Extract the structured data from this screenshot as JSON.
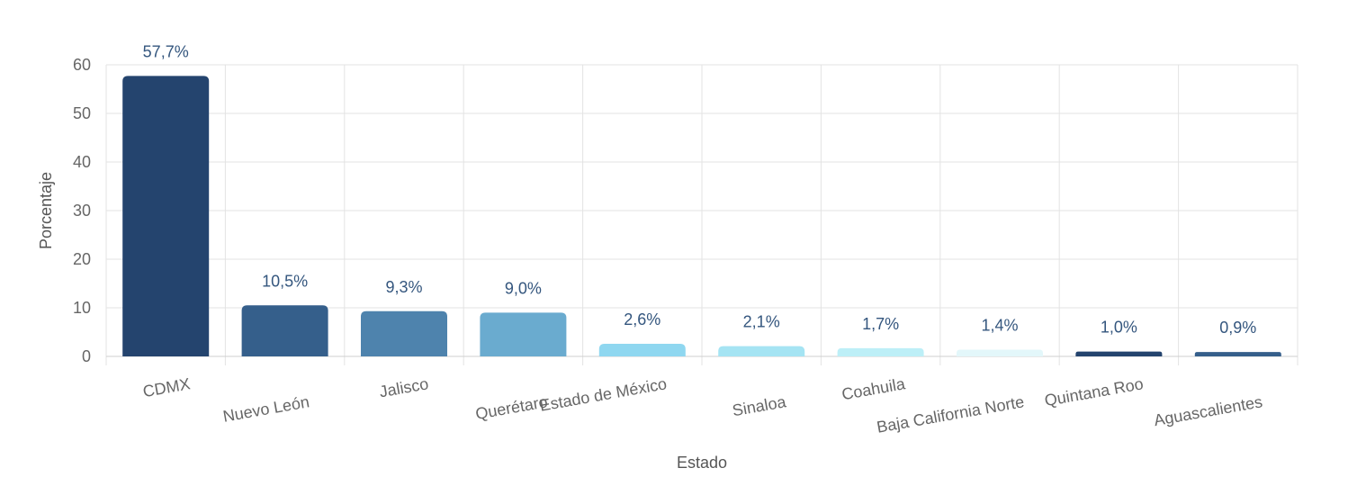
{
  "chart_data": {
    "type": "bar",
    "title": "",
    "xlabel": "Estado",
    "ylabel": "Porcentaje",
    "ylim": [
      0,
      60
    ],
    "yticks": [
      0,
      10,
      20,
      30,
      40,
      50,
      60
    ],
    "grid": true,
    "legend": "none",
    "categories": [
      "CDMX",
      "Nuevo León",
      "Jalisco",
      "Querétaro",
      "Estado de México",
      "Sinaloa",
      "Coahuila",
      "Baja California Norte",
      "Quintana Roo",
      "Aguascalientes"
    ],
    "values": [
      57.7,
      10.5,
      9.3,
      9.0,
      2.6,
      2.1,
      1.7,
      1.4,
      1.0,
      0.9
    ],
    "data_labels": [
      "57,7%",
      "10,5%",
      "9,3%",
      "9,0%",
      "2,6%",
      "2,1%",
      "1,7%",
      "1,4%",
      "1,0%",
      "0,9%"
    ],
    "colors": [
      "#24446e",
      "#355f8b",
      "#4e83ad",
      "#6aabcf",
      "#8fd7f0",
      "#a5e4f3",
      "#bdeff7",
      "#e3f7fa",
      "#24446e",
      "#355f8b"
    ]
  }
}
